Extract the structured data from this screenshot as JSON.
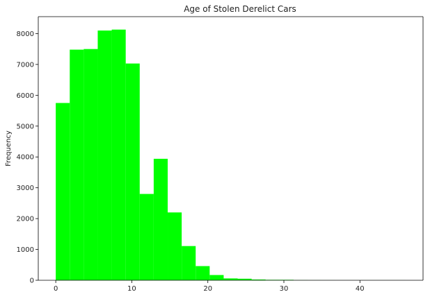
{
  "chart_data": {
    "type": "bar",
    "subtype": "histogram",
    "title": "Age of Stolen Derelict Cars",
    "xlabel": "",
    "ylabel": "Frequency",
    "xlim": [
      -2.3,
      48.3
    ],
    "ylim": [
      0,
      8550
    ],
    "xticks": [
      0,
      10,
      20,
      30,
      40
    ],
    "yticks": [
      0,
      1000,
      2000,
      3000,
      4000,
      5000,
      6000,
      7000,
      8000
    ],
    "grid": false,
    "bar_color": "#00ff00",
    "bins": [
      {
        "x0": 0.0,
        "x1": 1.84,
        "value": 5750
      },
      {
        "x0": 1.84,
        "x1": 3.68,
        "value": 7480
      },
      {
        "x0": 3.68,
        "x1": 5.52,
        "value": 7500
      },
      {
        "x0": 5.52,
        "x1": 7.36,
        "value": 8100
      },
      {
        "x0": 7.36,
        "x1": 9.2,
        "value": 8130
      },
      {
        "x0": 9.2,
        "x1": 11.04,
        "value": 7030
      },
      {
        "x0": 11.04,
        "x1": 12.88,
        "value": 2800
      },
      {
        "x0": 12.88,
        "x1": 14.72,
        "value": 3940
      },
      {
        "x0": 14.72,
        "x1": 16.56,
        "value": 2200
      },
      {
        "x0": 16.56,
        "x1": 18.4,
        "value": 1110
      },
      {
        "x0": 18.4,
        "x1": 20.24,
        "value": 460
      },
      {
        "x0": 20.24,
        "x1": 22.08,
        "value": 170
      },
      {
        "x0": 22.08,
        "x1": 23.92,
        "value": 60
      },
      {
        "x0": 23.92,
        "x1": 25.76,
        "value": 50
      },
      {
        "x0": 25.76,
        "x1": 27.6,
        "value": 25
      },
      {
        "x0": 27.6,
        "x1": 29.44,
        "value": 15
      },
      {
        "x0": 29.44,
        "x1": 31.28,
        "value": 15
      },
      {
        "x0": 31.28,
        "x1": 33.12,
        "value": 5
      },
      {
        "x0": 33.12,
        "x1": 34.96,
        "value": 3
      },
      {
        "x0": 34.96,
        "x1": 36.8,
        "value": 2
      },
      {
        "x0": 36.8,
        "x1": 38.64,
        "value": 1
      },
      {
        "x0": 38.64,
        "x1": 40.48,
        "value": 1
      },
      {
        "x0": 40.48,
        "x1": 42.32,
        "value": 1
      },
      {
        "x0": 42.32,
        "x1": 44.16,
        "value": 1
      },
      {
        "x0": 44.16,
        "x1": 46.0,
        "value": 1
      }
    ]
  }
}
